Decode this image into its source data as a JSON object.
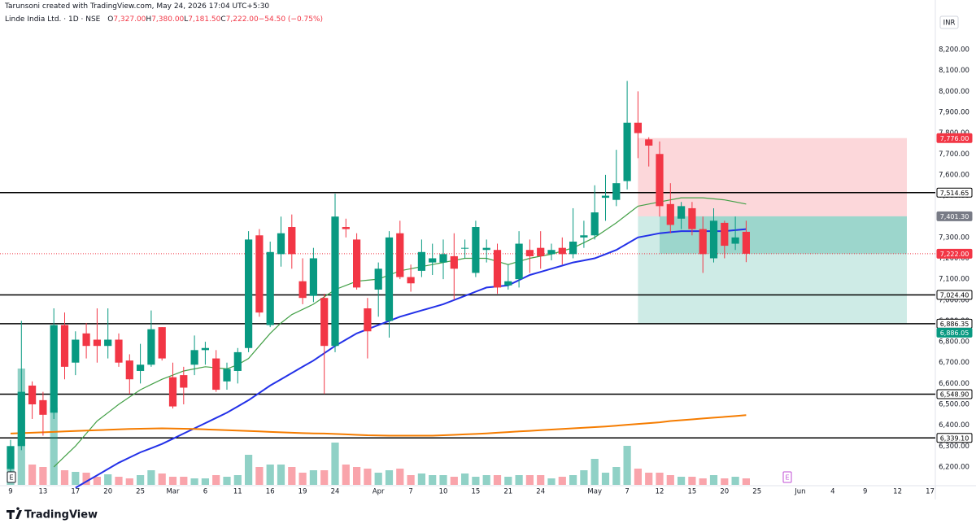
{
  "chart_data": {
    "type": "candlestick",
    "watermark": "Tarunsoni created with TradingView.com, May 24, 2026 17:04 UTC+5:30",
    "title": "Linde India Ltd. · 1D · NSE",
    "ohlc_legend": [
      {
        "label": "O",
        "value": "7,327.00"
      },
      {
        "label": "H",
        "value": "7,380.00"
      },
      {
        "label": "L",
        "value": "7,181.50"
      },
      {
        "label": "C",
        "value": "7,222.00"
      }
    ],
    "change": "−54.50 (−0.75%)",
    "currency": "INR",
    "brand": "TradingView",
    "markers": [
      "E",
      "E"
    ],
    "up_color": "#089981",
    "down_color": "#f23645",
    "categories": [
      "9",
      null,
      null,
      "13",
      null,
      null,
      "17",
      null,
      null,
      "20",
      null,
      null,
      "25",
      null,
      null,
      "Mar",
      null,
      null,
      "6",
      null,
      null,
      "11",
      null,
      null,
      "16",
      null,
      null,
      "19",
      null,
      null,
      "24",
      null,
      null,
      null,
      "Apr",
      null,
      null,
      "7",
      null,
      null,
      "10",
      null,
      null,
      "15",
      null,
      null,
      "21",
      null,
      null,
      "24",
      null,
      null,
      null,
      null,
      "May",
      null,
      null,
      "7",
      null,
      null,
      "12",
      null,
      null,
      "15",
      null,
      null,
      "20",
      null,
      null,
      "25",
      null,
      null,
      null,
      "Jun",
      null,
      null,
      "4",
      null,
      null,
      "9",
      null,
      null,
      "12",
      null,
      null,
      "17"
    ],
    "open": [
      6190,
      6300,
      6590,
      6520,
      6460,
      6880,
      6700,
      6840,
      6810,
      6780,
      6810,
      6710,
      6660,
      6690,
      6870,
      6630,
      6640,
      6690,
      6760,
      6720,
      6610,
      6660,
      6770,
      7310,
      6880,
      7220,
      7350,
      7090,
      7020,
      7010,
      6780,
      7350,
      7290,
      6960,
      7050,
      6900,
      7320,
      7110,
      7140,
      7180,
      7180,
      7210,
      7250,
      7130,
      7240,
      7240,
      7070,
      7100,
      7240,
      7250,
      7220,
      7250,
      7220,
      7300,
      7310,
      7490,
      7480,
      7570,
      7850,
      7770,
      7700,
      7460,
      7390,
      7440,
      7340,
      7200,
      7370,
      7270,
      7327,
      null,
      null,
      null,
      null,
      null,
      null,
      null,
      null,
      null,
      null,
      null,
      null,
      null,
      null,
      null,
      null,
      null
    ],
    "high": [
      6330,
      6900,
      6610,
      6560,
      6960,
      6940,
      6850,
      6890,
      6960,
      6960,
      6840,
      6740,
      6790,
      6950,
      6870,
      6700,
      6680,
      6830,
      6800,
      6760,
      6700,
      6770,
      7330,
      7340,
      7280,
      7400,
      7410,
      7200,
      7250,
      7030,
      7510,
      7390,
      7320,
      7010,
      7180,
      7330,
      7380,
      7170,
      7290,
      7270,
      7290,
      7320,
      7290,
      7380,
      7290,
      7270,
      7170,
      7330,
      7290,
      7330,
      7270,
      7300,
      7440,
      7380,
      7550,
      7600,
      7720,
      8050,
      8000,
      7780,
      7760,
      7560,
      7470,
      7470,
      7400,
      7440,
      7380,
      7400,
      7380,
      null,
      null,
      null,
      null,
      null,
      null,
      null,
      null,
      null,
      null,
      null,
      null,
      null,
      null,
      null,
      null,
      null
    ],
    "low": [
      6170,
      6280,
      6430,
      6350,
      6430,
      6620,
      6640,
      6720,
      6700,
      6720,
      6680,
      6550,
      6600,
      6680,
      6710,
      6480,
      6500,
      6640,
      6690,
      6560,
      6570,
      6600,
      6750,
      6920,
      6870,
      7160,
      7150,
      6980,
      6990,
      6550,
      6750,
      7300,
      7050,
      6720,
      6920,
      6820,
      7100,
      7040,
      7110,
      7120,
      7100,
      7000,
      7200,
      7110,
      7180,
      7030,
      7050,
      7060,
      7130,
      7150,
      7190,
      7170,
      7200,
      7250,
      7290,
      7380,
      7450,
      7530,
      7680,
      7640,
      7400,
      7320,
      7340,
      7310,
      7130,
      7180,
      7200,
      7240,
      7181.5,
      null,
      null,
      null,
      null,
      null,
      null,
      null,
      null,
      null,
      null,
      null,
      null,
      null,
      null,
      null,
      null,
      null
    ],
    "close": [
      6300,
      6560,
      6500,
      6450,
      6880,
      6680,
      6810,
      6780,
      6780,
      6810,
      6700,
      6620,
      6690,
      6860,
      6720,
      6490,
      6580,
      6760,
      6770,
      6570,
      6670,
      6750,
      7290,
      6940,
      7230,
      7320,
      7220,
      7010,
      7200,
      6780,
      7400,
      7340,
      7060,
      6850,
      7150,
      7300,
      7110,
      7080,
      7230,
      7200,
      7220,
      7150,
      7250,
      7350,
      7250,
      7060,
      7090,
      7270,
      7210,
      7210,
      7240,
      7220,
      7280,
      7310,
      7420,
      7500,
      7560,
      7850,
      7800,
      7740,
      7450,
      7360,
      7450,
      7340,
      7220,
      7380,
      7260,
      7300,
      7222,
      null,
      null,
      null,
      null,
      null,
      null,
      null,
      null,
      null,
      null,
      null,
      null,
      null,
      null,
      null,
      null,
      null
    ],
    "volume": [
      20,
      143,
      25,
      22,
      95,
      18,
      16,
      15,
      10,
      13,
      10,
      8,
      12,
      18,
      14,
      10,
      10,
      8,
      8,
      12,
      10,
      12,
      37,
      22,
      25,
      25,
      22,
      15,
      18,
      18,
      52,
      25,
      22,
      20,
      15,
      18,
      20,
      12,
      14,
      12,
      12,
      10,
      14,
      10,
      12,
      12,
      10,
      12,
      12,
      12,
      8,
      10,
      12,
      18,
      32,
      15,
      22,
      48,
      20,
      15,
      15,
      12,
      10,
      10,
      8,
      12,
      8,
      10,
      8,
      null,
      null,
      null,
      null,
      null,
      null,
      null,
      null,
      null,
      null,
      null,
      null,
      null,
      null,
      null,
      null,
      null
    ],
    "moving_averages": [
      {
        "color": "#43a047",
        "values": [
          null,
          null,
          null,
          null,
          6200,
          6250,
          6300,
          6360,
          6420,
          6460,
          6500,
          6535,
          6570,
          6595,
          6620,
          6640,
          6660,
          6670,
          6680,
          6675,
          6670,
          6690,
          6720,
          6780,
          6840,
          6890,
          6930,
          6955,
          6980,
          7015,
          7050,
          7070,
          7090,
          7095,
          7100,
          7120,
          7140,
          7150,
          7160,
          7170,
          7180,
          7190,
          7200,
          7200,
          7200,
          7185,
          7170,
          7185,
          7200,
          7210,
          7220,
          7235,
          7250,
          7275,
          7300,
          7335,
          7370,
          7410,
          7450,
          7460,
          7470,
          7480,
          7490,
          7490,
          7490,
          7485,
          7480,
          7470,
          7460,
          null,
          null,
          null,
          null,
          null,
          null,
          null,
          null,
          null,
          null,
          null,
          null,
          null,
          null,
          null,
          null,
          null
        ]
      },
      {
        "color": "#2331e8",
        "values": [
          null,
          null,
          null,
          null,
          null,
          null,
          6100,
          6130,
          6160,
          6190,
          6220,
          6245,
          6270,
          6290,
          6310,
          6335,
          6360,
          6385,
          6410,
          6435,
          6460,
          6490,
          6520,
          6555,
          6590,
          6620,
          6650,
          6680,
          6710,
          6745,
          6780,
          6810,
          6840,
          6860,
          6880,
          6900,
          6920,
          6935,
          6950,
          6965,
          6980,
          7000,
          7020,
          7040,
          7060,
          7065,
          7070,
          7095,
          7120,
          7135,
          7150,
          7165,
          7180,
          7190,
          7200,
          7220,
          7240,
          7270,
          7300,
          7310,
          7320,
          7325,
          7330,
          7330,
          7330,
          7330,
          7330,
          7335,
          7340,
          null,
          null,
          null,
          null,
          null,
          null,
          null,
          null,
          null,
          null,
          null,
          null,
          null,
          null,
          null,
          null,
          null
        ]
      },
      {
        "color": "#f57c00",
        "values": [
          6360,
          6362,
          6364,
          6366,
          6368,
          6370,
          6372,
          6374,
          6376,
          6378,
          6380,
          6382,
          6383,
          6384,
          6385,
          6384,
          6383,
          6382,
          6380,
          6378,
          6376,
          6374,
          6372,
          6370,
          6368,
          6366,
          6364,
          6362,
          6361,
          6360,
          6358,
          6356,
          6354,
          6352,
          6351,
          6350,
          6350,
          6350,
          6350,
          6350,
          6352,
          6354,
          6356,
          6358,
          6361,
          6364,
          6367,
          6370,
          6373,
          6376,
          6379,
          6382,
          6385,
          6388,
          6391,
          6394,
          6398,
          6402,
          6406,
          6410,
          6414,
          6420,
          6424,
          6428,
          6432,
          6436,
          6440,
          6444,
          6448,
          null,
          null,
          null,
          null,
          null,
          null,
          null,
          null,
          null,
          null,
          null,
          null,
          null,
          null,
          null,
          null,
          null
        ]
      }
    ],
    "levels": [
      {
        "value": 7514.65,
        "label": "7,514.65"
      },
      {
        "value": 7024.4,
        "label": "7,024.40"
      },
      {
        "value": 6886.35,
        "label": "6,886.35"
      },
      {
        "value": 6548.9,
        "label": "6,548.90"
      },
      {
        "value": 6339.1,
        "label": "6,339.10"
      }
    ],
    "price_labels": [
      {
        "value": 7776,
        "label": "7,776.00",
        "color": "#f23645"
      },
      {
        "value": 7401.3,
        "label": "7,401.30",
        "color": "#787b86"
      },
      {
        "value": 7222,
        "label": "7,222.00",
        "color": "#f23645"
      },
      {
        "value": 6886.05,
        "label": "6,886.05",
        "color": "#089981"
      }
    ],
    "ylim": [
      6114,
      8360
    ],
    "yticks": [
      {
        "value": 6200,
        "label": "6,200.00"
      },
      {
        "value": 6300,
        "label": "6,300.00"
      },
      {
        "value": 6400,
        "label": "6,400.00"
      },
      {
        "value": 6500,
        "label": "6,500.00"
      },
      {
        "value": 6600,
        "label": "6,600.00"
      },
      {
        "value": 6700,
        "label": "6,700.00"
      },
      {
        "value": 6800,
        "label": "6,800.00"
      },
      {
        "value": 6900,
        "label": "6,900.00"
      },
      {
        "value": 7000,
        "label": "7,000.00"
      },
      {
        "value": 7100,
        "label": "7,100.00"
      },
      {
        "value": 7200,
        "label": "7,200.00"
      },
      {
        "value": 7300,
        "label": "7,300.00"
      },
      {
        "value": 7400,
        "label": "7,400.00"
      },
      {
        "value": 7500,
        "label": "7,500.00"
      },
      {
        "value": 7600,
        "label": "7,600.00"
      },
      {
        "value": 7700,
        "label": "7,700.00"
      },
      {
        "value": 7800,
        "label": "7,800.00"
      },
      {
        "value": 7900,
        "label": "7,900.00"
      },
      {
        "value": 8000,
        "label": "8,000.00"
      },
      {
        "value": 8100,
        "label": "8,100.00"
      },
      {
        "value": 8200,
        "label": "8,200.00"
      }
    ]
  }
}
